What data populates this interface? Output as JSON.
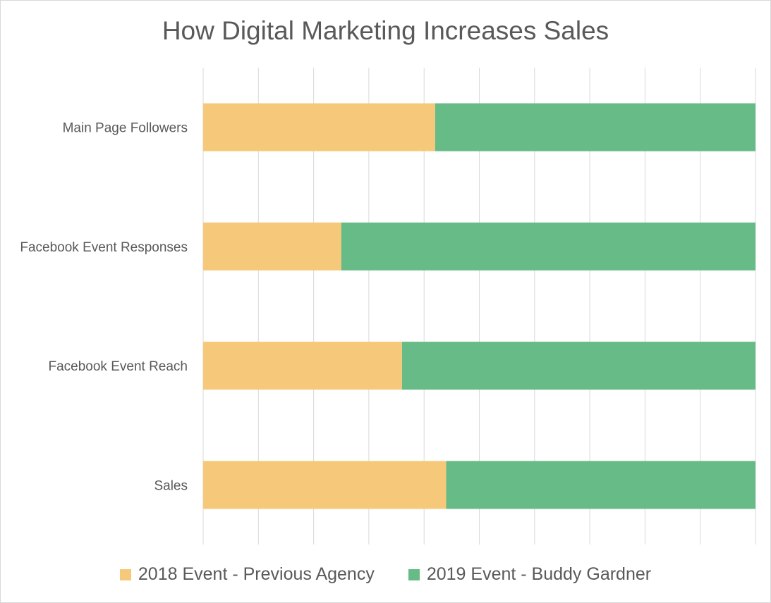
{
  "chart_data": {
    "type": "bar",
    "orientation": "horizontal",
    "stacked": true,
    "normalized": "100%",
    "title": "How Digital Marketing Increases Sales",
    "categories": [
      "Main Page Followers",
      "Facebook Event Responses",
      "Facebook Event Reach",
      "Sales"
    ],
    "series": [
      {
        "name": "2018 Event - Previous Agency",
        "color": "#F6C97A",
        "values": [
          0.42,
          0.25,
          0.36,
          0.44
        ]
      },
      {
        "name": "2019 Event - Buddy Gardner",
        "color": "#66BB87",
        "values": [
          0.58,
          0.75,
          0.64,
          0.56
        ]
      }
    ],
    "xlim": [
      0,
      1
    ],
    "x_gridlines": 10,
    "grid": true,
    "legend_position": "bottom"
  }
}
